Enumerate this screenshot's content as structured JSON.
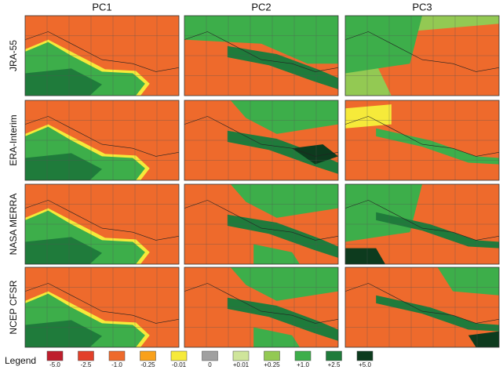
{
  "columns": [
    "PC1",
    "PC2",
    "PC3"
  ],
  "rows": [
    "JRA-55",
    "ERA-Interim",
    "NASA MERRA",
    "NCEP CFSR"
  ],
  "legend": {
    "title": "Legend",
    "items": [
      {
        "label": "-5.0",
        "color": "#be1e2d"
      },
      {
        "label": "-2.5",
        "color": "#e2402a"
      },
      {
        "label": "-1.0",
        "color": "#ee6a2c"
      },
      {
        "label": "-0.25",
        "color": "#f9a11b"
      },
      {
        "label": "-0.01",
        "color": "#f6ea3a"
      },
      {
        "label": "0",
        "color": "#a0a0a0"
      },
      {
        "label": "+0.01",
        "color": "#cfe59b"
      },
      {
        "label": "+0.25",
        "color": "#93c953"
      },
      {
        "label": "+1.0",
        "color": "#3dae4a"
      },
      {
        "label": "+2.5",
        "color": "#1f7b3b"
      },
      {
        "label": "+5.0",
        "color": "#0d3b1e"
      }
    ]
  }
}
